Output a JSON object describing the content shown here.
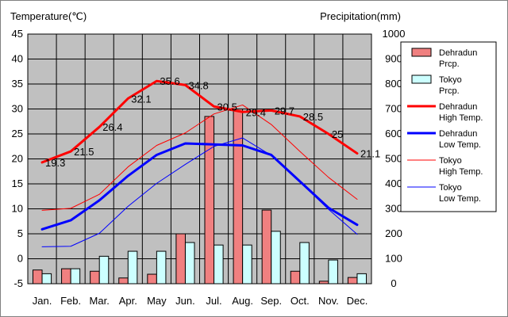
{
  "chart_data": {
    "type": "bar+line",
    "categories": [
      "Jan.",
      "Feb.",
      "Mar.",
      "Apr.",
      "May",
      "Jun.",
      "Jul.",
      "Aug.",
      "Sep.",
      "Oct.",
      "Nov.",
      "Dec."
    ],
    "y_left": {
      "label": "Temperature(℃)",
      "min": -5,
      "max": 45,
      "ticks": [
        -5,
        0,
        5,
        10,
        15,
        20,
        25,
        30,
        35,
        40,
        45
      ]
    },
    "y_right": {
      "label": "Precipitation(mm)",
      "min": 0,
      "max": 1000,
      "ticks": [
        0,
        100,
        200,
        300,
        400,
        500,
        600,
        700,
        800,
        900,
        1000
      ]
    },
    "grid": true,
    "legend_position": "right",
    "series": [
      {
        "legend": [
          "Dehradun",
          "Prcp."
        ],
        "kind": "bar",
        "axis": "right",
        "color": "#f08080",
        "stroke": "#000000",
        "values": [
          55,
          60,
          50,
          23,
          38,
          200,
          670,
          700,
          295,
          50,
          10,
          25
        ]
      },
      {
        "legend": [
          "Tokyo",
          "Prcp."
        ],
        "kind": "bar",
        "axis": "right",
        "color": "#ccffff",
        "stroke": "#000000",
        "values": [
          40,
          60,
          110,
          130,
          130,
          165,
          155,
          155,
          210,
          165,
          95,
          40
        ]
      },
      {
        "legend": [
          "Dehradun",
          "High Temp."
        ],
        "kind": "line",
        "axis": "left",
        "color": "#ff0000",
        "width": 3,
        "values": [
          19.3,
          21.5,
          26.4,
          32.1,
          35.6,
          34.8,
          30.5,
          29.4,
          29.7,
          28.5,
          25,
          21.1
        ],
        "labels": [
          "19.3",
          "21.5",
          "26.4",
          "32.1",
          "35.6",
          "34.8",
          "30.5",
          "29.4",
          "29.7",
          "28.5",
          "25",
          "21.1"
        ]
      },
      {
        "legend": [
          "Dehradun",
          "Low Temp."
        ],
        "kind": "line",
        "axis": "left",
        "color": "#0000ff",
        "width": 3,
        "values": [
          5.9,
          7.7,
          11.7,
          16.6,
          20.8,
          23.1,
          22.9,
          22.7,
          20.8,
          15.5,
          10.2,
          6.8
        ]
      },
      {
        "legend": [
          "Tokyo",
          "High Temp."
        ],
        "kind": "line",
        "axis": "left",
        "color": "#ff0000",
        "width": 1,
        "values": [
          9.7,
          10.1,
          12.9,
          18.4,
          22.7,
          25.2,
          29.0,
          30.8,
          26.9,
          21.5,
          16.3,
          11.9
        ]
      },
      {
        "legend": [
          "Tokyo",
          "Low Temp."
        ],
        "kind": "line",
        "axis": "left",
        "color": "#0000ff",
        "width": 1,
        "values": [
          2.4,
          2.5,
          5.1,
          10.5,
          15.1,
          18.9,
          22.5,
          24.2,
          20.7,
          15.4,
          9.9,
          4.9
        ]
      }
    ]
  }
}
